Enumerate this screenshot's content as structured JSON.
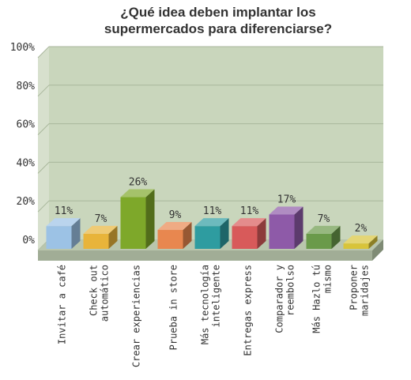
{
  "chart_data": {
    "type": "bar",
    "title_lines": [
      "¿Qué idea deben implantar los",
      "supermercados para diferenciarse?"
    ],
    "categories": [
      "Invitar a café",
      "Check out automático",
      "Crear experiencias",
      "Prueba in store",
      "Más tecnología inteligente",
      "Entregas express",
      "Comparador y reembolso",
      "Más Hazlo tú mismo",
      "Proponer maridajes"
    ],
    "category_lines": [
      [
        "Invitar a café"
      ],
      [
        "Check out",
        "automático"
      ],
      [
        "Crear experiencias"
      ],
      [
        "Prueba in store"
      ],
      [
        "Más tecnología",
        "inteligente"
      ],
      [
        "Entregas express"
      ],
      [
        "Comparador y",
        "reembolso"
      ],
      [
        "Más Hazlo tú",
        "mismo"
      ],
      [
        "Proponer",
        "maridajes"
      ]
    ],
    "values": [
      11,
      7,
      26,
      9,
      11,
      11,
      17,
      7,
      2
    ],
    "value_labels": [
      "11%",
      "7%",
      "26%",
      "9%",
      "11%",
      "11%",
      "17%",
      "7%",
      "2%"
    ],
    "yticks": [
      "0%",
      "20%",
      "40%",
      "60%",
      "80%",
      "100%"
    ],
    "ylim": [
      0,
      100
    ],
    "grid": true,
    "style": "3d-bars",
    "colors": [
      "#9cc2e5",
      "#e8b43a",
      "#7ea82a",
      "#e8874f",
      "#2e9ca0",
      "#d85a5a",
      "#8e5aa8",
      "#6a9a4a",
      "#d8c43a"
    ],
    "plot_background": "#c9d6bc"
  }
}
